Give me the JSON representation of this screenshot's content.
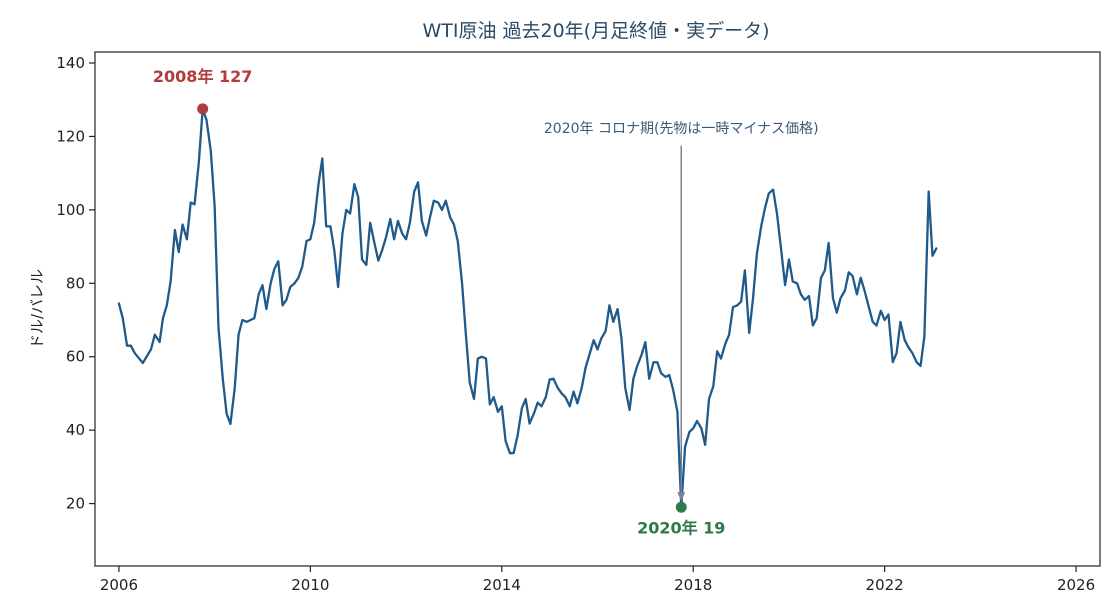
{
  "chart_data": {
    "type": "line",
    "title": "WTI原油 過去20年(月足終値・実データ)",
    "xlabel": "",
    "ylabel": "ドル/バレル",
    "xlim": [
      2005.5,
      2026.5
    ],
    "ylim": [
      3,
      143
    ],
    "x_ticks": [
      2006,
      2010,
      2014,
      2018,
      2022,
      2026
    ],
    "x_tick_labels": [
      "2006",
      "2010",
      "2014",
      "2018",
      "2022",
      "2026"
    ],
    "y_ticks": [
      20,
      40,
      60,
      80,
      100,
      120,
      140
    ],
    "y_tick_labels": [
      "20",
      "40",
      "60",
      "80",
      "100",
      "120",
      "140"
    ],
    "grid": false,
    "legend": "none",
    "series": [
      {
        "color": "#1f5a8a",
        "points": [
          [
            2006.0,
            74.5
          ],
          [
            2006.08,
            70.5
          ],
          [
            2006.17,
            63
          ],
          [
            2006.25,
            63
          ],
          [
            2006.33,
            61
          ],
          [
            2006.5,
            58.3
          ],
          [
            2006.67,
            62
          ],
          [
            2006.75,
            66
          ],
          [
            2006.85,
            64
          ],
          [
            2006.92,
            70.5
          ],
          [
            2007.0,
            74
          ],
          [
            2007.08,
            80.5
          ],
          [
            2007.17,
            94.5
          ],
          [
            2007.25,
            88.5
          ],
          [
            2007.33,
            96
          ],
          [
            2007.42,
            92
          ],
          [
            2007.5,
            102
          ],
          [
            2007.58,
            101.5
          ],
          [
            2007.67,
            113
          ],
          [
            2007.75,
            127.5
          ],
          [
            2007.83,
            124.5
          ],
          [
            2007.92,
            116
          ],
          [
            2008.0,
            101
          ],
          [
            2008.08,
            68
          ],
          [
            2008.17,
            54
          ],
          [
            2008.25,
            44.5
          ],
          [
            2008.33,
            41.7
          ],
          [
            2008.42,
            51.5
          ],
          [
            2008.5,
            66
          ],
          [
            2008.58,
            70
          ],
          [
            2008.67,
            69.5
          ],
          [
            2008.75,
            70
          ],
          [
            2008.83,
            70.5
          ],
          [
            2008.92,
            77
          ],
          [
            2009.0,
            79.5
          ],
          [
            2009.08,
            73
          ],
          [
            2009.17,
            80
          ],
          [
            2009.25,
            84
          ],
          [
            2009.33,
            86
          ],
          [
            2009.42,
            74
          ],
          [
            2009.5,
            75.5
          ],
          [
            2009.58,
            79
          ],
          [
            2009.67,
            80
          ],
          [
            2009.75,
            81.5
          ],
          [
            2009.83,
            84.5
          ],
          [
            2009.92,
            91.5
          ],
          [
            2010.0,
            92
          ],
          [
            2010.08,
            96.5
          ],
          [
            2010.17,
            107
          ],
          [
            2010.25,
            114
          ],
          [
            2010.33,
            95.5
          ],
          [
            2010.42,
            95.5
          ],
          [
            2010.5,
            89
          ],
          [
            2010.58,
            79
          ],
          [
            2010.67,
            93.5
          ],
          [
            2010.75,
            100
          ],
          [
            2010.83,
            99
          ],
          [
            2010.92,
            107
          ],
          [
            2011.0,
            103.5
          ],
          [
            2011.08,
            86.5
          ],
          [
            2011.17,
            85
          ],
          [
            2011.25,
            96.5
          ],
          [
            2011.33,
            91.5
          ],
          [
            2011.42,
            86.2
          ],
          [
            2011.5,
            89
          ],
          [
            2011.58,
            92.5
          ],
          [
            2011.67,
            97.5
          ],
          [
            2011.75,
            92
          ],
          [
            2011.83,
            97
          ],
          [
            2011.92,
            93.5
          ],
          [
            2012.0,
            92
          ],
          [
            2012.08,
            96.5
          ],
          [
            2012.17,
            105
          ],
          [
            2012.25,
            107.5
          ],
          [
            2012.33,
            97
          ],
          [
            2012.42,
            93
          ],
          [
            2012.5,
            98
          ],
          [
            2012.58,
            102.5
          ],
          [
            2012.67,
            102
          ],
          [
            2012.75,
            100
          ],
          [
            2012.83,
            102.5
          ],
          [
            2012.92,
            98
          ],
          [
            2013.0,
            96
          ],
          [
            2013.08,
            91.5
          ],
          [
            2013.17,
            80
          ],
          [
            2013.25,
            66
          ],
          [
            2013.33,
            53
          ],
          [
            2013.42,
            48.5
          ],
          [
            2013.5,
            59.5
          ],
          [
            2013.58,
            60
          ],
          [
            2013.67,
            59.5
          ],
          [
            2013.75,
            47
          ],
          [
            2013.83,
            49
          ],
          [
            2013.92,
            45
          ],
          [
            2014.0,
            46.5
          ],
          [
            2014.08,
            37
          ],
          [
            2014.17,
            33.7
          ],
          [
            2014.25,
            33.8
          ],
          [
            2014.33,
            38.5
          ],
          [
            2014.42,
            46
          ],
          [
            2014.5,
            48.5
          ],
          [
            2014.58,
            41.8
          ],
          [
            2014.67,
            44.5
          ],
          [
            2014.75,
            47.5
          ],
          [
            2014.83,
            46.5
          ],
          [
            2014.92,
            49
          ],
          [
            2015.0,
            53.8
          ],
          [
            2015.08,
            54
          ],
          [
            2015.17,
            51.5
          ],
          [
            2015.25,
            50
          ],
          [
            2015.33,
            49
          ],
          [
            2015.42,
            46.5
          ],
          [
            2015.5,
            50.5
          ],
          [
            2015.58,
            47.3
          ],
          [
            2015.67,
            51.5
          ],
          [
            2015.75,
            57
          ],
          [
            2015.83,
            60.5
          ],
          [
            2015.92,
            64.5
          ],
          [
            2016.0,
            62
          ],
          [
            2016.08,
            65
          ],
          [
            2016.17,
            67
          ],
          [
            2016.25,
            74
          ],
          [
            2016.33,
            69.5
          ],
          [
            2016.42,
            73
          ],
          [
            2016.5,
            65
          ],
          [
            2016.58,
            51.5
          ],
          [
            2016.67,
            45.5
          ],
          [
            2016.75,
            54
          ],
          [
            2016.83,
            57.5
          ],
          [
            2016.92,
            60.5
          ],
          [
            2017.0,
            64
          ],
          [
            2017.08,
            54
          ],
          [
            2017.17,
            58.5
          ],
          [
            2017.25,
            58.5
          ],
          [
            2017.33,
            55.5
          ],
          [
            2017.42,
            54.5
          ],
          [
            2017.5,
            55
          ],
          [
            2017.58,
            51
          ],
          [
            2017.67,
            45
          ],
          [
            2017.75,
            19
          ],
          [
            2017.83,
            35.5
          ],
          [
            2017.92,
            39.5
          ],
          [
            2018.0,
            40.5
          ],
          [
            2018.08,
            42.5
          ],
          [
            2018.17,
            40.5
          ],
          [
            2018.25,
            36
          ],
          [
            2018.33,
            48.5
          ],
          [
            2018.42,
            52
          ],
          [
            2018.5,
            61.5
          ],
          [
            2018.58,
            59.5
          ],
          [
            2018.67,
            63.5
          ],
          [
            2018.75,
            66
          ],
          [
            2018.83,
            73.5
          ],
          [
            2018.92,
            74
          ],
          [
            2019.0,
            75
          ],
          [
            2019.08,
            83.5
          ],
          [
            2019.17,
            66.5
          ],
          [
            2019.25,
            76
          ],
          [
            2019.33,
            88
          ],
          [
            2019.42,
            95.5
          ],
          [
            2019.5,
            100.5
          ],
          [
            2019.58,
            104.5
          ],
          [
            2019.67,
            105.5
          ],
          [
            2019.75,
            99
          ],
          [
            2019.83,
            90
          ],
          [
            2019.92,
            79.5
          ],
          [
            2020.0,
            86.5
          ],
          [
            2020.08,
            80.5
          ],
          [
            2020.17,
            80
          ],
          [
            2020.25,
            77
          ],
          [
            2020.33,
            75.5
          ],
          [
            2020.42,
            76.5
          ],
          [
            2020.5,
            68.5
          ],
          [
            2020.58,
            70.5
          ],
          [
            2020.67,
            81.5
          ],
          [
            2020.75,
            83.5
          ],
          [
            2020.83,
            91
          ],
          [
            2020.92,
            76
          ],
          [
            2021.0,
            72
          ],
          [
            2021.08,
            76
          ],
          [
            2021.17,
            78
          ],
          [
            2021.25,
            83
          ],
          [
            2021.33,
            82
          ],
          [
            2021.42,
            77
          ],
          [
            2021.5,
            81.5
          ],
          [
            2021.58,
            78
          ],
          [
            2021.67,
            73.5
          ],
          [
            2021.75,
            69.5
          ],
          [
            2021.83,
            68.5
          ],
          [
            2021.92,
            72.5
          ],
          [
            2022.0,
            70
          ],
          [
            2022.08,
            71.5
          ],
          [
            2022.17,
            58.5
          ],
          [
            2022.25,
            61
          ],
          [
            2022.33,
            69.5
          ],
          [
            2022.42,
            64.5
          ],
          [
            2022.5,
            62.5
          ],
          [
            2022.58,
            61
          ],
          [
            2022.67,
            58.5
          ],
          [
            2022.75,
            57.5
          ],
          [
            2022.83,
            65.5
          ],
          [
            2022.92,
            105
          ],
          [
            2023.0,
            87.5
          ],
          [
            2023.08,
            89.5
          ]
        ]
      }
    ],
    "annotations": [
      {
        "label": "2008年 127",
        "x": 2007.75,
        "y": 127.5,
        "color": "#b23b3b",
        "position": "above"
      },
      {
        "label": "2020年 19",
        "x": 2017.75,
        "y": 19,
        "color": "#2e7a4a",
        "position": "below"
      }
    ],
    "arrow_note": {
      "text": "2020年 コロナ期(先物は一時マイナス価格)",
      "x": 2017.75,
      "y_text": 121,
      "y_from": 117.5,
      "y_to": 19,
      "color": "#7a8194"
    }
  }
}
